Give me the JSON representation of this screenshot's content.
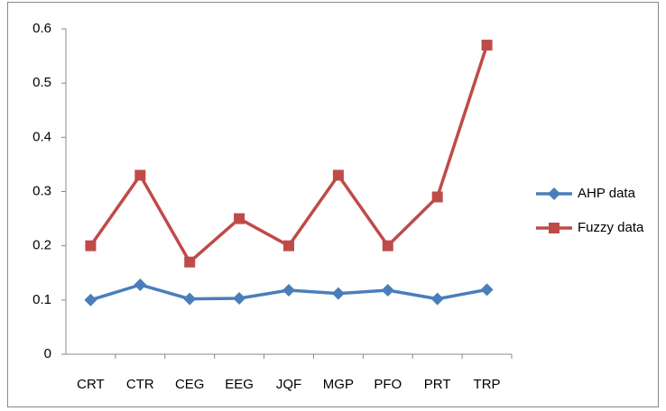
{
  "chart_data": {
    "type": "line",
    "categories": [
      "CRT",
      "CTR",
      "CEG",
      "EEG",
      "JQF",
      "MGP",
      "PFO",
      "PRT",
      "TRP"
    ],
    "series": [
      {
        "name": "AHP data",
        "color": "#4a7ebb",
        "marker": "diamond",
        "values": [
          0.1,
          0.128,
          0.102,
          0.103,
          0.118,
          0.112,
          0.118,
          0.102,
          0.119
        ]
      },
      {
        "name": "Fuzzy data",
        "color": "#be4b48",
        "marker": "square",
        "values": [
          0.2,
          0.33,
          0.17,
          0.25,
          0.2,
          0.33,
          0.2,
          0.29,
          0.57
        ]
      }
    ],
    "ylim": [
      0,
      0.6
    ],
    "yticks": [
      0,
      0.1,
      0.2,
      0.3,
      0.4,
      0.5,
      0.6
    ],
    "grid": false,
    "legend": "right"
  }
}
